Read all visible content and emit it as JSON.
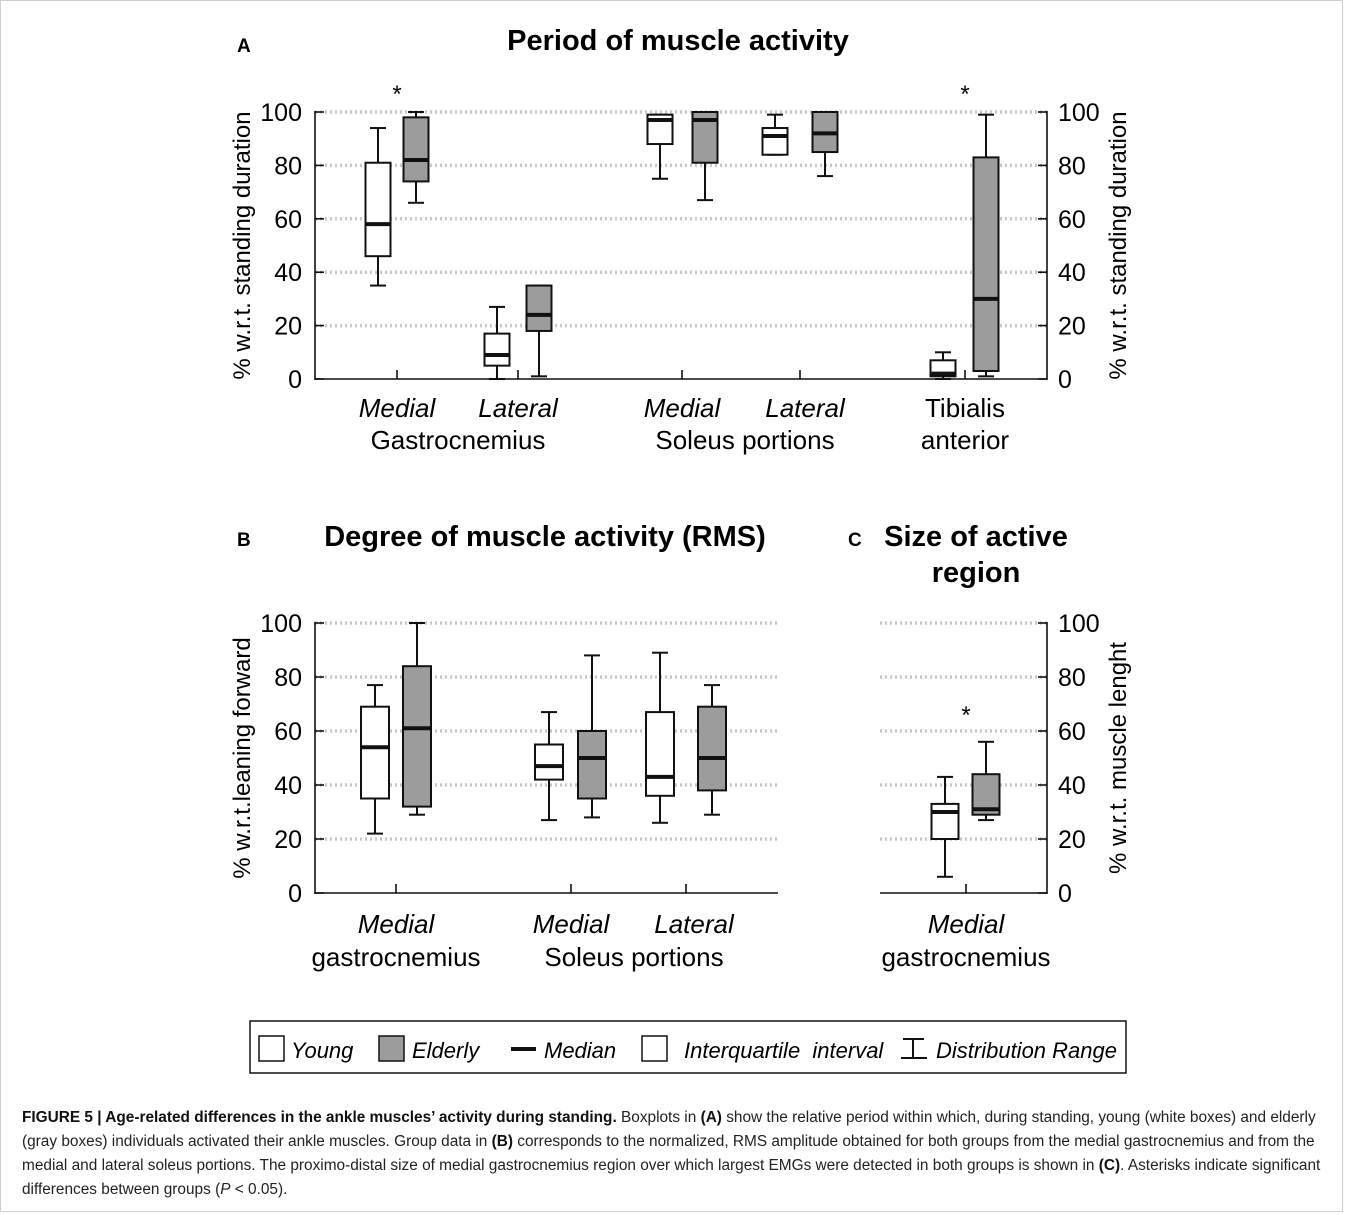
{
  "chart_data": [
    {
      "panel": "A",
      "type": "boxplot",
      "title": "Period of muscle activity",
      "ylabel": "% w.r.t. standing duration",
      "ylabel_right": "% w.r.t. standing duration",
      "ylim": [
        0,
        100
      ],
      "yticks": [
        "0",
        "20",
        "40",
        "60",
        "80",
        "100"
      ],
      "grid": true,
      "groups": [
        {
          "label1": "Medial",
          "label2": "Gastrocnemius",
          "significant": true
        },
        {
          "label1": "Lateral",
          "label2": "",
          "significant": false
        },
        {
          "label1": "Medial",
          "label2": "Soleus portions",
          "significant": false
        },
        {
          "label1": "Lateral",
          "label2": "",
          "significant": false
        },
        {
          "label1": "Tibialis",
          "label2": "anterior",
          "significant": true
        }
      ],
      "series": [
        {
          "name": "Young",
          "color": "#ffffff",
          "boxes": [
            [
              35,
              46,
              58,
              81,
              94
            ],
            [
              0,
              5,
              9,
              17,
              27
            ],
            [
              75,
              88,
              97,
              99,
              99
            ],
            [
              84,
              84,
              91,
              94,
              99
            ],
            [
              0,
              1,
              2,
              7,
              10
            ]
          ]
        },
        {
          "name": "Elderly",
          "color": "#9c9c9c",
          "boxes": [
            [
              66,
              74,
              82,
              98,
              100
            ],
            [
              1,
              18,
              24,
              35,
              35
            ],
            [
              67,
              81,
              97,
              100,
              100
            ],
            [
              76,
              85,
              92,
              100,
              100
            ],
            [
              1,
              3,
              30,
              83,
              99
            ]
          ]
        }
      ],
      "asterisk": "*"
    },
    {
      "panel": "B",
      "type": "boxplot",
      "title": "Degree of muscle activity (RMS)",
      "ylabel": "% w.r.t.leaning forward",
      "ylim": [
        0,
        100
      ],
      "yticks": [
        "0",
        "20",
        "40",
        "60",
        "80",
        "100"
      ],
      "grid": true,
      "groups": [
        {
          "label1": "Medial",
          "label2": "gastrocnemius"
        },
        {
          "label1": "Medial",
          "label2": "Soleus portions"
        },
        {
          "label1": "Lateral",
          "label2": ""
        }
      ],
      "series": [
        {
          "name": "Young",
          "color": "#ffffff",
          "boxes": [
            [
              22,
              35,
              54,
              69,
              77
            ],
            [
              27,
              42,
              47,
              55,
              67
            ],
            [
              26,
              36,
              43,
              67,
              89
            ]
          ]
        },
        {
          "name": "Elderly",
          "color": "#9c9c9c",
          "boxes": [
            [
              29,
              32,
              61,
              84,
              100
            ],
            [
              28,
              35,
              50,
              60,
              88
            ],
            [
              29,
              38,
              50,
              69,
              77
            ]
          ]
        }
      ]
    },
    {
      "panel": "C",
      "type": "boxplot",
      "title": "Size of active region",
      "ylabel": "% w.r.t. muscle lenght",
      "ylim": [
        0,
        100
      ],
      "yticks": [
        "0",
        "20",
        "40",
        "60",
        "80",
        "100"
      ],
      "grid": true,
      "groups": [
        {
          "label1": "Medial",
          "label2": "gastrocnemius",
          "significant": true
        }
      ],
      "series": [
        {
          "name": "Young",
          "color": "#ffffff",
          "boxes": [
            [
              6,
              20,
              30,
              33,
              43
            ]
          ]
        },
        {
          "name": "Elderly",
          "color": "#9c9c9c",
          "boxes": [
            [
              27,
              29,
              31,
              44,
              56
            ]
          ]
        }
      ],
      "asterisk": "*"
    }
  ],
  "panels": {
    "a": {
      "letter": "A",
      "title": "Period of muscle activity"
    },
    "b": {
      "letter": "B",
      "title": "Degree of muscle activity (RMS)"
    },
    "c": {
      "letter": "C",
      "title_line1": "Size of active",
      "title_line2": "region"
    }
  },
  "legend": {
    "young": "Young",
    "elderly": "Elderly",
    "median": "Median",
    "iqr": "Interquartile  interval",
    "range": "Distribution Range"
  },
  "caption": {
    "fig_label": "FIGURE 5 | Age-related differences in the ankle muscles’ activity during standing.",
    "t1": " Boxplots in ",
    "refA": "(A)",
    "t2": " show the relative period within which, during standing, young (white boxes) and elderly (gray boxes) individuals activated their ankle muscles. Group data in ",
    "refB": "(B)",
    "t3": " corresponds to the normalized, RMS amplitude obtained for both groups from the medial gastrocnemius and from the medial and lateral soleus portions. The proximo-distal size of medial gastrocnemius region over which largest EMGs were detected in both groups is shown in ",
    "refC": "(C)",
    "t4": ". Asterisks indicate significant differences between groups (",
    "p": "P",
    "t5": " < 0.05)."
  }
}
